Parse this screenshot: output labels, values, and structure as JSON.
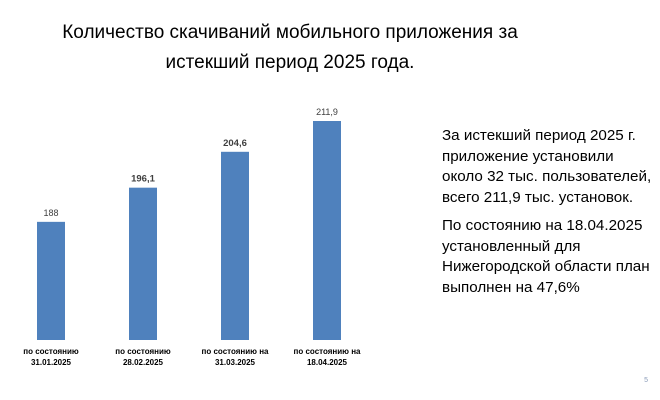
{
  "title": {
    "line1": "Количество скачиваний мобильного приложения за",
    "line2": "истекший период 2025 года."
  },
  "chart_data": {
    "type": "bar",
    "categories": [
      [
        "по состоянию",
        "31.01.2025"
      ],
      [
        "по состоянию",
        "28.02.2025"
      ],
      [
        "по состоянию на",
        "31.03.2025"
      ],
      [
        "по состоянию на",
        "18.04.2025"
      ]
    ],
    "values": [
      188,
      196.1,
      204.6,
      211.9
    ],
    "value_labels": [
      "188",
      "196,1",
      "204,6",
      "211,9"
    ],
    "ylim": [
      160,
      215
    ],
    "grid": false,
    "legend": "none",
    "bar_color": "#4f81bd"
  },
  "side": {
    "paragraph1": "За истекший период 2025 г. приложение установили около 32 тыс. пользователей, всего 211,9 тыс. установок.",
    "paragraph2": "По состоянию на 18.04.2025 установленный для Нижегородской области план выполнен на 47,6%"
  },
  "page_number": "5"
}
